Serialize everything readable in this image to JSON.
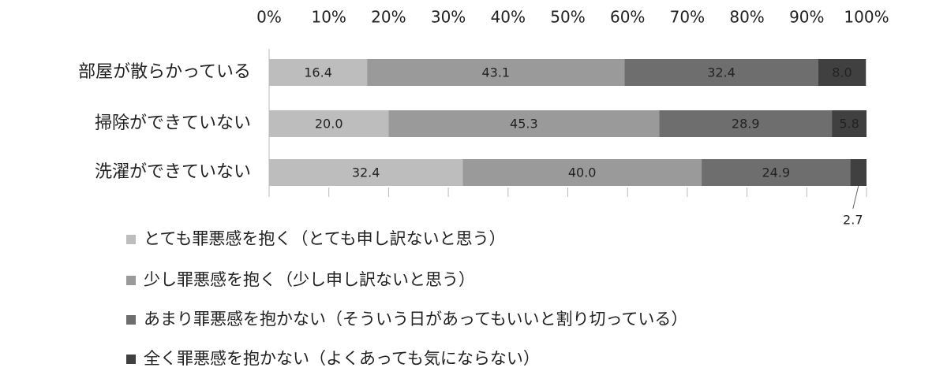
{
  "chart_data": {
    "type": "stacked-bar-horizontal",
    "categories": [
      "部屋が散らかっている",
      "掃除ができていない",
      "洗濯ができていない"
    ],
    "series": [
      {
        "name": "とても罪悪感を抱く（とても申し訳ないと思う）",
        "color": "#bdbdbd",
        "values": [
          16.4,
          20.0,
          32.4
        ],
        "value_labels": [
          "16.4",
          "20.0",
          "32.4"
        ]
      },
      {
        "name": "少し罪悪感を抱く（少し申し訳ないと思う）",
        "color": "#9a9a9a",
        "values": [
          43.1,
          45.3,
          40.0
        ],
        "value_labels": [
          "43.1",
          "45.3",
          "40.0"
        ]
      },
      {
        "name": "あまり罪悪感を抱かない（そういう日があってもいいと割り切っている）",
        "color": "#6e6e6e",
        "values": [
          32.4,
          28.9,
          24.9
        ],
        "value_labels": [
          "32.4",
          "28.9",
          "24.9"
        ]
      },
      {
        "name": "全く罪悪感を抱かない（よくあっても気にならない）",
        "color": "#404040",
        "values": [
          8.0,
          5.8,
          2.7
        ],
        "value_labels": [
          "8.0",
          "5.8",
          "2.7"
        ]
      }
    ],
    "xlim": [
      0,
      100
    ],
    "xticks": [
      {
        "value": 0,
        "label": "0%"
      },
      {
        "value": 10,
        "label": "10%"
      },
      {
        "value": 20,
        "label": "20%"
      },
      {
        "value": 30,
        "label": "30%"
      },
      {
        "value": 40,
        "label": "40%"
      },
      {
        "value": 50,
        "label": "50%"
      },
      {
        "value": 60,
        "label": "60%"
      },
      {
        "value": 70,
        "label": "70%"
      },
      {
        "value": 80,
        "label": "80%"
      },
      {
        "value": 90,
        "label": "90%"
      },
      {
        "value": 100,
        "label": "100%"
      }
    ],
    "legend": "bottom"
  }
}
